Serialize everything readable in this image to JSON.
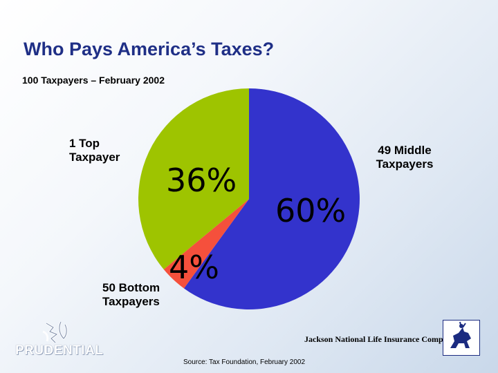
{
  "title": "Who Pays America’s Taxes?",
  "subtitle": "100 Taxpayers – February 2002",
  "chart_data": {
    "type": "pie",
    "title": "Who Pays America’s Taxes?",
    "subtitle": "100 Taxpayers – February 2002",
    "slices": [
      {
        "label": "1 Top\nTaxpayer",
        "value": 36,
        "display": "36%",
        "color": "#9ec400"
      },
      {
        "label": "50 Bottom\nTaxpayers",
        "value": 4,
        "display": "4%",
        "color": "#f5503c"
      },
      {
        "label": "49 Middle\nTaxpayers",
        "value": 60,
        "display": "60%",
        "color": "#3333cc"
      }
    ]
  },
  "logos": {
    "left": "PRUDENTIAL",
    "right": "Jackson National Life Insurance Company",
    "right_mark": "®"
  },
  "source": "Source: Tax Foundation, February 2002"
}
